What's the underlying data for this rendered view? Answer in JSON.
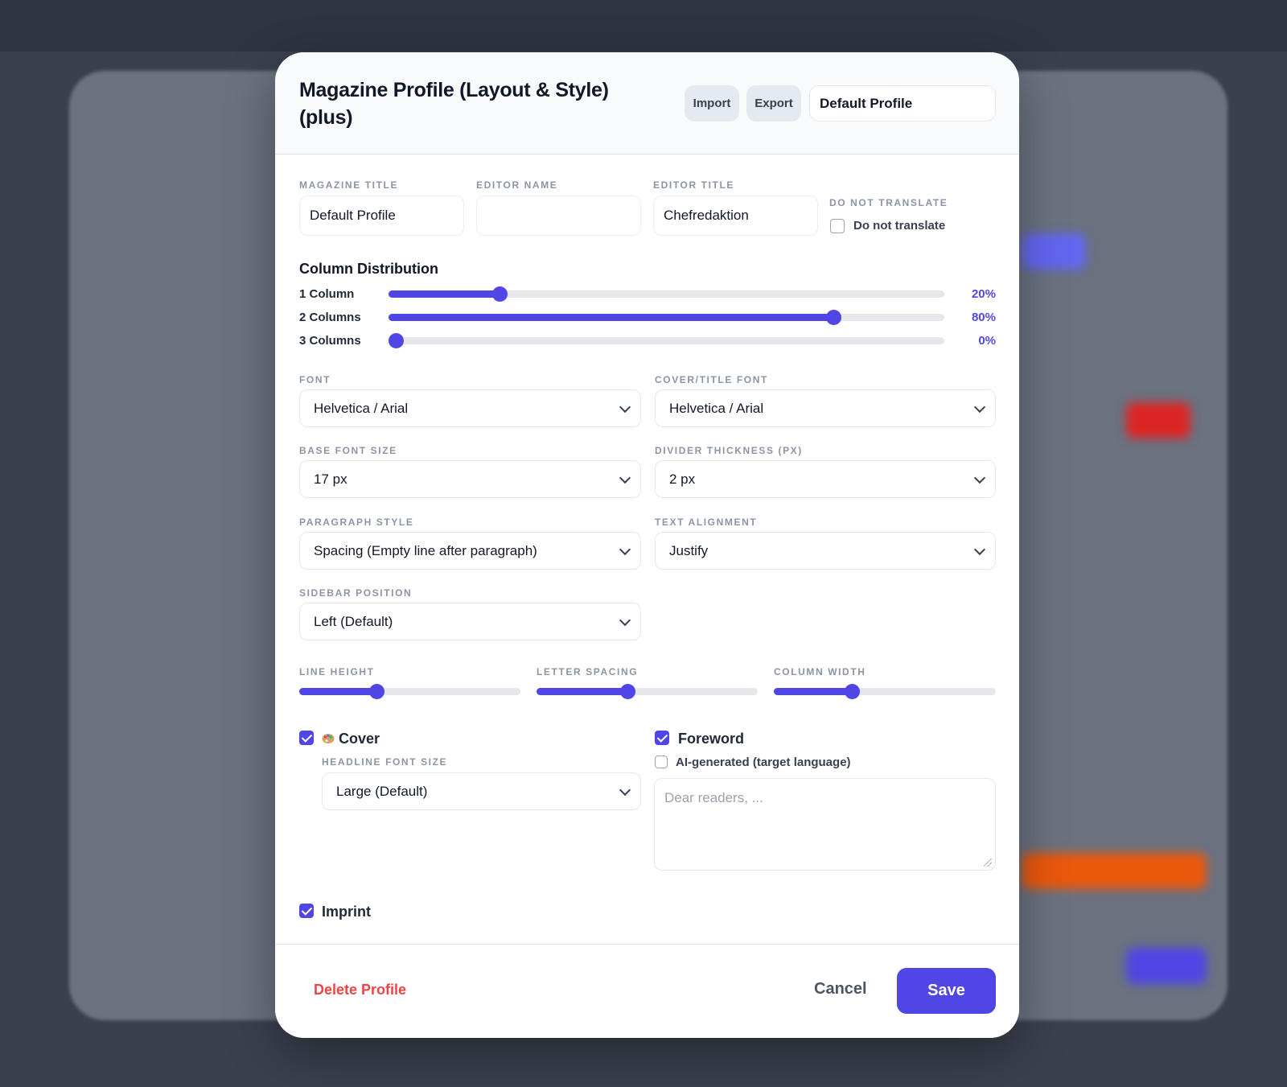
{
  "modal": {
    "title": "Magazine Profile (Layout & Style) (plus)",
    "import_label": "Import",
    "export_label": "Export",
    "profile_select": "Default Profile"
  },
  "fields": {
    "magazine_title_label": "MAGAZINE TITLE",
    "magazine_title_value": "Default Profile",
    "editor_name_label": "EDITOR NAME",
    "editor_name_value": "",
    "editor_title_label": "EDITOR TITLE",
    "editor_title_value": "Chefredaktion",
    "do_not_translate_label": "DO NOT TRANSLATE",
    "do_not_translate_checkbox": "Do not translate",
    "do_not_translate_checked": false
  },
  "column_distribution": {
    "title": "Column Distribution",
    "rows": [
      {
        "label": "1 Column",
        "value": 20,
        "display": "20%"
      },
      {
        "label": "2 Columns",
        "value": 80,
        "display": "80%"
      },
      {
        "label": "3 Columns",
        "value": 0,
        "display": "0%"
      }
    ]
  },
  "selects": {
    "font_label": "FONT",
    "font_value": "Helvetica / Arial",
    "cover_font_label": "COVER/TITLE FONT",
    "cover_font_value": "Helvetica / Arial",
    "base_font_size_label": "BASE FONT SIZE",
    "base_font_size_value": "17 px",
    "divider_thickness_label": "DIVIDER THICKNESS (PX)",
    "divider_thickness_value": "2 px",
    "paragraph_style_label": "PARAGRAPH STYLE",
    "paragraph_style_value": "Spacing (Empty line after paragraph)",
    "text_alignment_label": "TEXT ALIGNMENT",
    "text_alignment_value": "Justify",
    "sidebar_position_label": "SIDEBAR POSITION",
    "sidebar_position_value": "Left (Default)"
  },
  "sliders": {
    "line_height_label": "LINE HEIGHT",
    "line_height_level": 0.35,
    "letter_spacing_label": "LETTER SPACING",
    "letter_spacing_level": 0.41,
    "column_width_label": "COLUMN WIDTH",
    "column_width_level": 0.35
  },
  "cover": {
    "label": "Cover",
    "checked": true,
    "icon": "palette-icon",
    "headline_font_size_label": "HEADLINE FONT SIZE",
    "headline_font_size_value": "Large (Default)"
  },
  "foreword": {
    "label": "Foreword",
    "checked": true,
    "ai_label": "AI-generated (target language)",
    "ai_checked": false,
    "placeholder": "Dear readers, ..."
  },
  "imprint": {
    "label": "Imprint",
    "checked": true
  },
  "footer": {
    "delete_label": "Delete Profile",
    "cancel_label": "Cancel",
    "save_label": "Save"
  },
  "colors": {
    "accent": "#4f46e5",
    "danger": "#ef4444"
  }
}
